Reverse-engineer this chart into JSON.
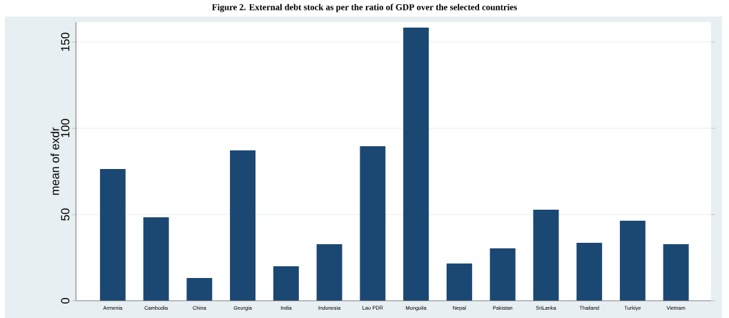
{
  "chart_data": {
    "type": "bar",
    "title": "Figure 2. External debt stock as per the ratio of GDP over the selected countries",
    "ylabel": "mean of exdr",
    "categories": [
      "Armenia",
      "Cambodia",
      "China",
      "Georgia",
      "India",
      "Indonesia",
      "Lao PDR",
      "Mongolia",
      "Nepal",
      "Pakistan",
      "SriLanka",
      "Thailand",
      "Turkiye",
      "Vietnam"
    ],
    "values": [
      76.4,
      48.4,
      13.2,
      87.2,
      20,
      32.8,
      89.6,
      158.4,
      21.6,
      30.4,
      52.8,
      33.6,
      46.4,
      32.8
    ],
    "color": "#1b4872",
    "ylim": [
      0,
      161.6
    ],
    "yticks": [
      0,
      50,
      100,
      150
    ],
    "grid": "y"
  }
}
